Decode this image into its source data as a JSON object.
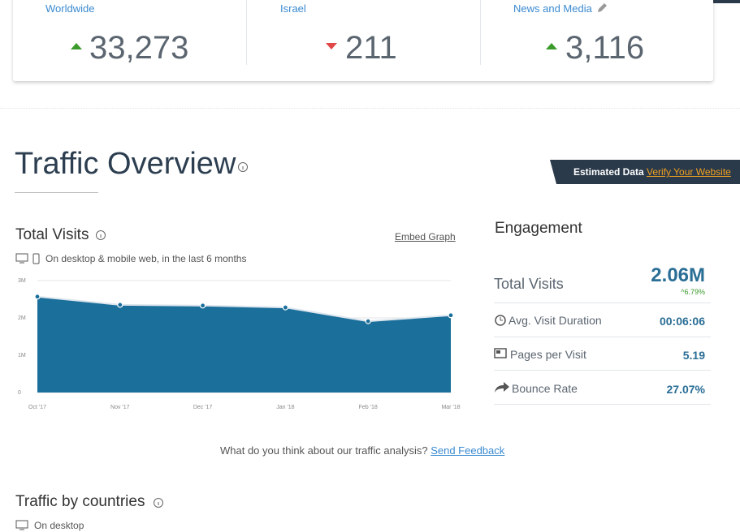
{
  "rank_cards": [
    {
      "label": "Worldwide",
      "value": "33,273"
    },
    {
      "label": "Israel",
      "value": "211"
    },
    {
      "label": "News and Media",
      "value": "3,116"
    }
  ],
  "overview": {
    "title": "Traffic Overview",
    "badge": "Estimated Data",
    "badge_link": "Verify Your Website"
  },
  "total_visits": {
    "title": "Total Visits",
    "embed": "Embed Graph",
    "subtitle": "On desktop & mobile web, in the last 6 months"
  },
  "chart_data": {
    "type": "area",
    "categories": [
      "Oct '17",
      "Nov '17",
      "Dec '17",
      "Jan '18",
      "Feb '18",
      "Mar '18"
    ],
    "values": [
      2.57,
      2.35,
      2.33,
      2.28,
      1.91,
      2.07
    ],
    "color": "#1b6f9b",
    "ylim": [
      0,
      3
    ],
    "yticks": [
      0,
      {
        "value": 1,
        "label": "1M"
      },
      {
        "value": 2,
        "label": "2M"
      },
      {
        "value": 3,
        "label": "3M"
      }
    ],
    "grid": true
  },
  "engagement": {
    "title": "Engagement",
    "total_label": "Total Visits",
    "total_value": "2.06M",
    "total_change": "6.79%",
    "rows": [
      {
        "label": "Avg. Visit Duration",
        "value": "00:06:06"
      },
      {
        "label": "Pages per Visit",
        "value": "5.19"
      },
      {
        "label": "Bounce Rate",
        "value": "27.07%"
      }
    ]
  },
  "feedback": {
    "text": "What do you think about our traffic analysis?",
    "link": "Send Feedback"
  },
  "countries": {
    "title": "Traffic by countries",
    "subtitle": "On desktop"
  }
}
